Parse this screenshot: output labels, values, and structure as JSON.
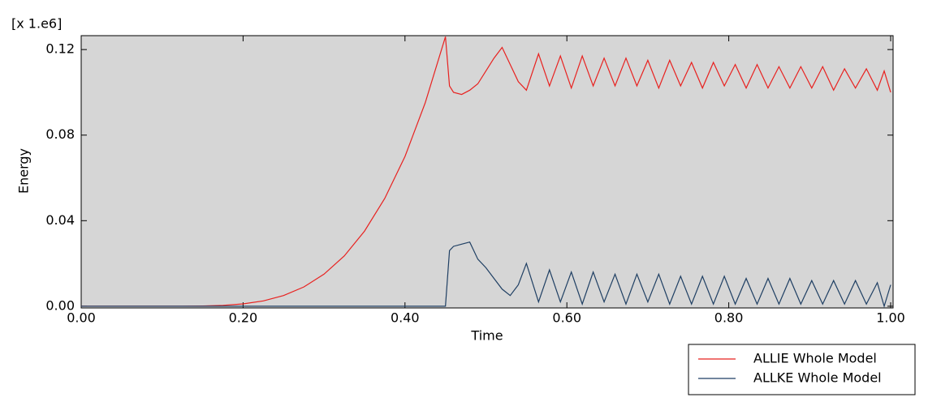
{
  "chart_data": {
    "type": "line",
    "scale_label": "[x 1.e6]",
    "xlabel": "Time",
    "ylabel": "Energy",
    "x": [
      0,
      0.025,
      0.05,
      0.075,
      0.1,
      0.125,
      0.15,
      0.175,
      0.2,
      0.225,
      0.25,
      0.275,
      0.3,
      0.325,
      0.35,
      0.375,
      0.4,
      0.425,
      0.45,
      0.455,
      0.46,
      0.47,
      0.48,
      0.49,
      0.5,
      0.51,
      0.52,
      0.53,
      0.54,
      0.55,
      0.565,
      0.5785,
      0.592,
      0.6055,
      0.619,
      0.6325,
      0.646,
      0.6595,
      0.673,
      0.6865,
      0.7,
      0.7135,
      0.727,
      0.7405,
      0.754,
      0.7675,
      0.781,
      0.7945,
      0.808,
      0.8215,
      0.835,
      0.8485,
      0.862,
      0.8755,
      0.889,
      0.9025,
      0.916,
      0.9295,
      0.943,
      0.9565,
      0.97,
      0.9835,
      0.992,
      1.0
    ],
    "series": [
      {
        "name": "ALLIE Whole Model",
        "color": "#e8211f",
        "values": [
          0,
          0,
          0,
          0,
          0,
          0,
          0.0001,
          0.0004,
          0.0011,
          0.0025,
          0.005,
          0.009,
          0.015,
          0.0235,
          0.0351,
          0.0504,
          0.07,
          0.0951,
          0.126,
          0.103,
          0.1,
          0.099,
          0.101,
          0.104,
          0.11,
          0.116,
          0.121,
          0.113,
          0.105,
          0.101,
          0.118,
          0.103,
          0.117,
          0.102,
          0.117,
          0.103,
          0.116,
          0.103,
          0.116,
          0.103,
          0.115,
          0.102,
          0.115,
          0.103,
          0.114,
          0.102,
          0.114,
          0.103,
          0.113,
          0.102,
          0.113,
          0.102,
          0.112,
          0.102,
          0.112,
          0.102,
          0.112,
          0.101,
          0.111,
          0.102,
          0.111,
          0.101,
          0.11,
          0.1
        ]
      },
      {
        "name": "ALLKE Whole Model",
        "color": "#1f3f63",
        "values": [
          0,
          0,
          0,
          0,
          0,
          0,
          0,
          0,
          0,
          0,
          0,
          0,
          0,
          0,
          0,
          0,
          0,
          0,
          0,
          0.026,
          0.028,
          0.029,
          0.03,
          0.022,
          0.018,
          0.013,
          0.008,
          0.005,
          0.01,
          0.02,
          0.002,
          0.017,
          0.002,
          0.016,
          0.001,
          0.016,
          0.002,
          0.015,
          0.001,
          0.015,
          0.002,
          0.015,
          0.001,
          0.014,
          0.001,
          0.014,
          0.001,
          0.014,
          0.001,
          0.013,
          0.001,
          0.013,
          0.001,
          0.013,
          0.001,
          0.012,
          0.001,
          0.012,
          0.001,
          0.012,
          0.001,
          0.011,
          0,
          0.01
        ]
      }
    ],
    "xlim": [
      0,
      1.003
    ],
    "ylim": [
      -0.0008,
      0.1265
    ],
    "xticks": [
      {
        "value": 0,
        "label": "0.00"
      },
      {
        "value": 0.2,
        "label": "0.20"
      },
      {
        "value": 0.4,
        "label": "0.40"
      },
      {
        "value": 0.6,
        "label": "0.60"
      },
      {
        "value": 0.8,
        "label": "0.80"
      },
      {
        "value": 1,
        "label": "1.00"
      }
    ],
    "yticks": [
      {
        "value": 0,
        "label": "0.00"
      },
      {
        "value": 0.04,
        "label": "0.04"
      },
      {
        "value": 0.08,
        "label": "0.08"
      },
      {
        "value": 0.12,
        "label": "0.12"
      }
    ],
    "grid": false,
    "legend": "bottom-right",
    "background": "#d6d6d6"
  }
}
